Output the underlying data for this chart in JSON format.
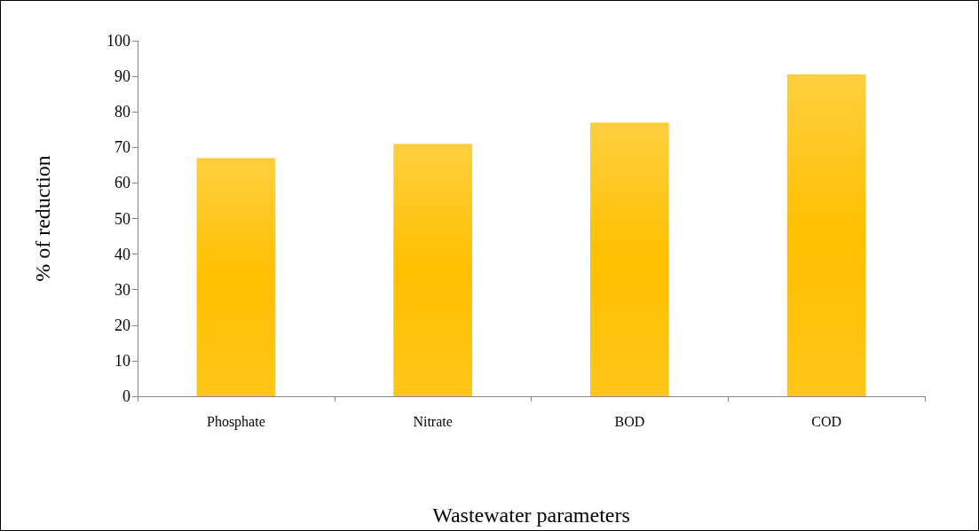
{
  "chart_data": {
    "type": "bar",
    "xlabel": "Wastewater parameters",
    "ylabel": "% of reduction",
    "categories": [
      "Phosphate",
      "Nitrate",
      "BOD",
      "COD"
    ],
    "values": [
      67,
      71,
      77,
      90.5
    ],
    "color": "#ffc000",
    "ylim": [
      0,
      100
    ],
    "yticks": [
      0,
      10,
      20,
      30,
      40,
      50,
      60,
      70,
      80,
      90,
      100
    ],
    "grid": false
  }
}
